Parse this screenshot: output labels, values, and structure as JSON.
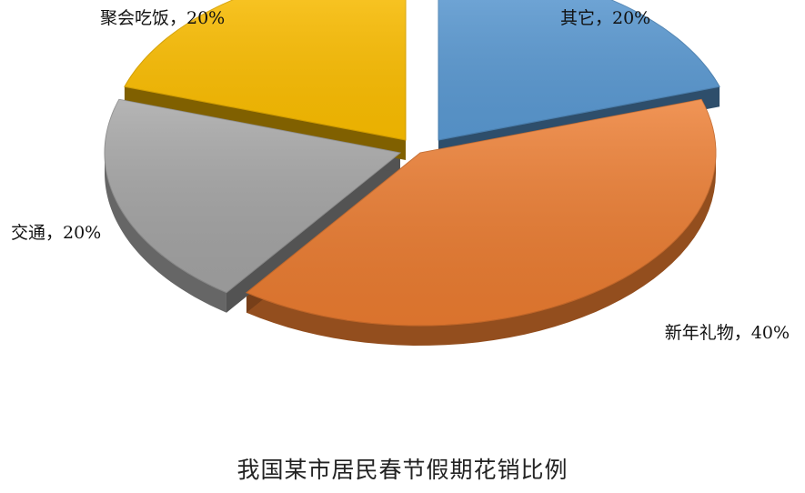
{
  "chart_data": {
    "type": "pie",
    "title": "我国某市居民春节假期花销比例",
    "slices": [
      {
        "label": "其它，20%",
        "value": 20,
        "color": "#5B9BD5"
      },
      {
        "label": "新年礼物，40%",
        "value": 40,
        "color": "#ED7D31"
      },
      {
        "label": "交通，20%",
        "value": 20,
        "color": "#A5A5A5"
      },
      {
        "label": "聚会吃饭，20%",
        "value": 20,
        "color": "#FFC000"
      }
    ],
    "style": "3d-exploded",
    "legend": "none"
  }
}
